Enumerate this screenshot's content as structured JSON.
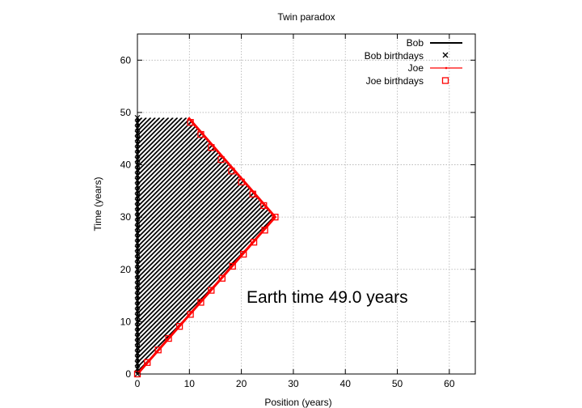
{
  "chart_data": {
    "type": "line",
    "title": "Twin paradox",
    "xlabel": "Position (years)",
    "ylabel": "Time (years)",
    "xlim": [
      0,
      65
    ],
    "ylim": [
      0,
      65
    ],
    "xticks": [
      0,
      10,
      20,
      30,
      40,
      50,
      60
    ],
    "yticks": [
      0,
      10,
      20,
      30,
      40,
      50,
      60
    ],
    "grid": true,
    "legend_position": "top-right",
    "annotation": "Earth time 49.0 years",
    "colors": {
      "bob": "#000000",
      "joe": "#ff0000",
      "hatch": "#000000"
    },
    "series": [
      {
        "name": "Bob",
        "style": "line",
        "x": [
          0,
          0
        ],
        "y": [
          0,
          49
        ]
      },
      {
        "name": "Bob birthdays",
        "style": "x-markers",
        "x": [
          0,
          0,
          0,
          0,
          0,
          0,
          0,
          0,
          0,
          0,
          0,
          0,
          0,
          0,
          0,
          0,
          0,
          0,
          0,
          0,
          0,
          0,
          0,
          0,
          0,
          0,
          0,
          0,
          0,
          0,
          0,
          0,
          0,
          0,
          0,
          0,
          0,
          0,
          0,
          0,
          0,
          0,
          0,
          0,
          0,
          0,
          0,
          0,
          0,
          0
        ],
        "y": [
          0,
          1,
          2,
          3,
          4,
          5,
          6,
          7,
          8,
          9,
          10,
          11,
          12,
          13,
          14,
          15,
          16,
          17,
          18,
          19,
          20,
          21,
          22,
          23,
          24,
          25,
          26,
          27,
          28,
          29,
          30,
          31,
          32,
          33,
          34,
          35,
          36,
          37,
          38,
          39,
          40,
          41,
          42,
          43,
          44,
          45,
          46,
          47,
          48,
          49
        ]
      },
      {
        "name": "Joe",
        "style": "line",
        "x": [
          0,
          26.5,
          9.8
        ],
        "y": [
          0,
          30,
          49
        ]
      },
      {
        "name": "Joe birthdays",
        "style": "square-markers",
        "x": [
          0,
          1.9,
          4,
          6,
          8.1,
          10.2,
          12.2,
          14.2,
          16.3,
          18.3,
          20.4,
          22.4,
          24.5,
          26.5,
          24.3,
          22.2,
          20,
          18.1,
          16.1,
          14.2,
          12.2,
          10.2
        ],
        "y": [
          0,
          2.2,
          4.6,
          6.8,
          9.1,
          11.4,
          13.7,
          16,
          18.3,
          20.6,
          22.9,
          25.2,
          27.5,
          30,
          32.2,
          34.4,
          36.7,
          38.8,
          41,
          43.3,
          45.8,
          48.1
        ]
      }
    ],
    "legend": [
      {
        "label": "Bob",
        "key": "bob-line"
      },
      {
        "label": "Bob birthdays",
        "key": "x-marker"
      },
      {
        "label": "Joe",
        "key": "joe-line"
      },
      {
        "label": "Joe birthdays",
        "key": "square-marker"
      }
    ]
  }
}
